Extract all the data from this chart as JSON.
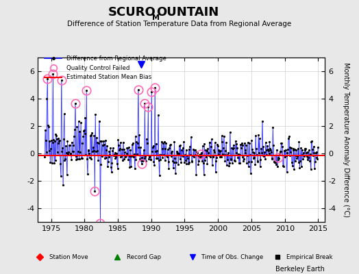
{
  "title_scuro": "SCURO",
  "title_m": "M",
  "title_ountain": "OUNTAIN",
  "subtitle": "Difference of Station Temperature Data from Regional Average",
  "xlabel_years": [
    1975,
    1980,
    1985,
    1990,
    1995,
    2000,
    2005,
    2010,
    2015
  ],
  "ylim": [
    -5,
    7
  ],
  "yticks": [
    -4,
    -2,
    0,
    2,
    4,
    6
  ],
  "ylabel": "Monthly Temperature Anomaly Difference (°C)",
  "bias_line_y": -0.15,
  "background_color": "#e8e8e8",
  "plot_bg_color": "#ffffff",
  "watermark": "Berkeley Earth",
  "xlim": [
    1973,
    2016
  ],
  "time_obs_change_year": 1988.5
}
